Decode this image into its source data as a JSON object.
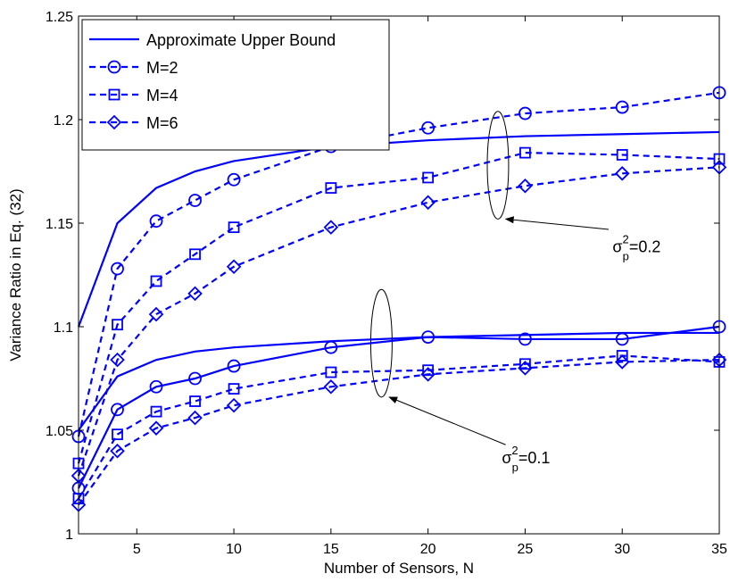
{
  "chart_data": {
    "type": "line",
    "title": "",
    "xlabel": "Number of Sensors, N",
    "ylabel": "Variance Ratio in Eq. (32)",
    "xlim": [
      2,
      35
    ],
    "ylim": [
      1,
      1.25
    ],
    "xticks": [
      5,
      10,
      15,
      20,
      25,
      30,
      35
    ],
    "yticks": [
      1,
      1.05,
      1.1,
      1.15,
      1.2,
      1.25
    ],
    "xtick_labels": [
      "5",
      "10",
      "15",
      "20",
      "25",
      "30",
      "35"
    ],
    "ytick_labels": [
      "1",
      "1.05",
      "1.1",
      "1.15",
      "1.2",
      "1.25"
    ],
    "grid": false,
    "legend_position": "top-left",
    "legend": [
      {
        "label": "Approximate Upper Bound",
        "style": "solid",
        "marker": "none"
      },
      {
        "label": "M=2",
        "style": "dashed",
        "marker": "circle"
      },
      {
        "label": "M=4",
        "style": "dashed",
        "marker": "square"
      },
      {
        "label": "M=6",
        "style": "dashed",
        "marker": "diamond"
      }
    ],
    "color": "#0000ff",
    "x": [
      2,
      4,
      6,
      8,
      10,
      15,
      20,
      25,
      30,
      35
    ],
    "series": [
      {
        "group": "0.2",
        "legend_index": 0,
        "style": "solid",
        "marker": "none",
        "values": [
          1.1,
          1.15,
          1.167,
          1.175,
          1.18,
          1.187,
          1.19,
          1.192,
          1.193,
          1.194
        ]
      },
      {
        "group": "0.2",
        "legend_index": 1,
        "style": "dashed",
        "marker": "circle",
        "values": [
          1.047,
          1.128,
          1.151,
          1.161,
          1.171,
          1.187,
          1.196,
          1.203,
          1.206,
          1.213
        ]
      },
      {
        "group": "0.2",
        "legend_index": 2,
        "style": "dashed",
        "marker": "square",
        "values": [
          1.034,
          1.101,
          1.122,
          1.135,
          1.148,
          1.167,
          1.172,
          1.184,
          1.183,
          1.181
        ]
      },
      {
        "group": "0.2",
        "legend_index": 3,
        "style": "dashed",
        "marker": "diamond",
        "values": [
          1.028,
          1.084,
          1.106,
          1.116,
          1.129,
          1.148,
          1.16,
          1.168,
          1.174,
          1.177
        ]
      },
      {
        "group": "0.1",
        "legend_index": 0,
        "style": "solid",
        "marker": "none",
        "values": [
          1.05,
          1.076,
          1.084,
          1.088,
          1.09,
          1.093,
          1.095,
          1.096,
          1.097,
          1.097
        ]
      },
      {
        "group": "0.1",
        "legend_index": 1,
        "style": "solid",
        "marker": "circle",
        "values": [
          1.022,
          1.06,
          1.071,
          1.075,
          1.081,
          1.09,
          1.095,
          1.094,
          1.094,
          1.1
        ]
      },
      {
        "group": "0.1",
        "legend_index": 2,
        "style": "dashed",
        "marker": "square",
        "values": [
          1.017,
          1.048,
          1.059,
          1.064,
          1.07,
          1.078,
          1.079,
          1.082,
          1.086,
          1.083
        ]
      },
      {
        "group": "0.1",
        "legend_index": 3,
        "style": "dashed",
        "marker": "diamond",
        "values": [
          1.014,
          1.04,
          1.051,
          1.056,
          1.062,
          1.071,
          1.077,
          1.08,
          1.083,
          1.084
        ]
      }
    ],
    "annotations": [
      {
        "text_base": "σ",
        "sup": "2",
        "sub": "p",
        "value_text": "=0.2",
        "ellipse_center": [
          23.6,
          1.178
        ],
        "ellipse_radius": [
          0.55,
          0.026
        ],
        "arrow_from": [
          29.3,
          1.147
        ],
        "arrow_to": [
          24.0,
          1.152
        ],
        "label_pos": [
          29.5,
          1.136
        ]
      },
      {
        "text_base": "σ",
        "sup": "2",
        "sub": "p",
        "value_text": "=0.1",
        "ellipse_center": [
          17.6,
          1.092
        ],
        "ellipse_radius": [
          0.55,
          0.026
        ],
        "arrow_from": [
          24.0,
          1.043
        ],
        "arrow_to": [
          18.0,
          1.066
        ],
        "label_pos": [
          23.8,
          1.034
        ]
      }
    ]
  }
}
